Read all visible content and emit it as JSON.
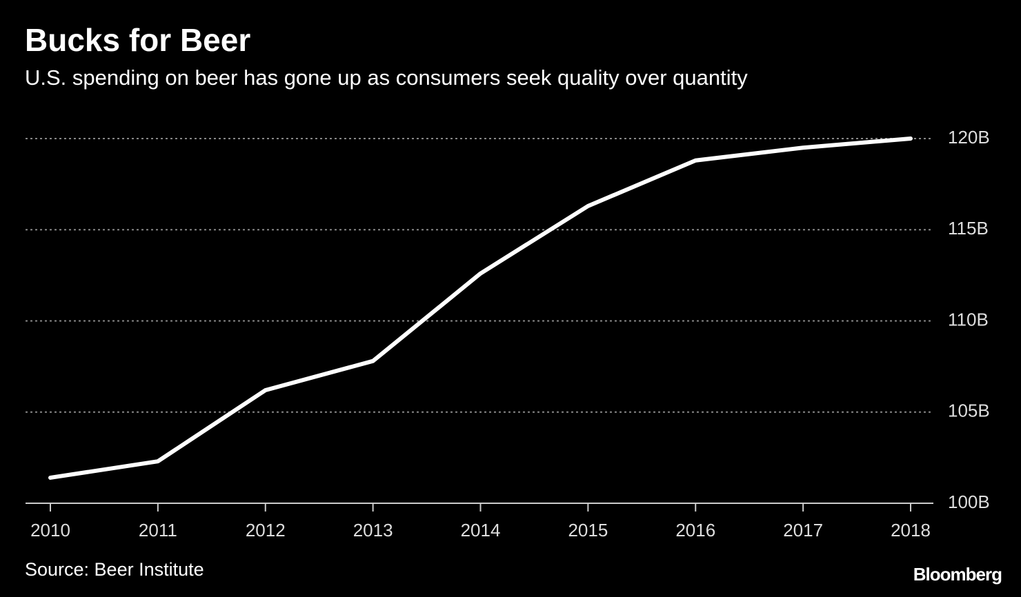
{
  "chart_data": {
    "type": "line",
    "title": "Bucks for Beer",
    "subtitle": "U.S. spending on beer has gone up as consumers seek quality over quantity",
    "categories": [
      "2010",
      "2011",
      "2012",
      "2013",
      "2014",
      "2015",
      "2016",
      "2017",
      "2018"
    ],
    "values": [
      101.4,
      102.3,
      106.2,
      107.8,
      112.6,
      116.3,
      118.8,
      119.5,
      120.0
    ],
    "color": "#ffffff",
    "ylim": [
      100,
      120
    ],
    "yticks": [
      {
        "value": 100,
        "label": "100B"
      },
      {
        "value": 105,
        "label": "105B"
      },
      {
        "value": 110,
        "label": "110B"
      },
      {
        "value": 115,
        "label": "115B"
      },
      {
        "value": 120,
        "label": "120B"
      }
    ],
    "grid": true,
    "source": "Source: Beer Institute",
    "brand": "Bloomberg"
  }
}
